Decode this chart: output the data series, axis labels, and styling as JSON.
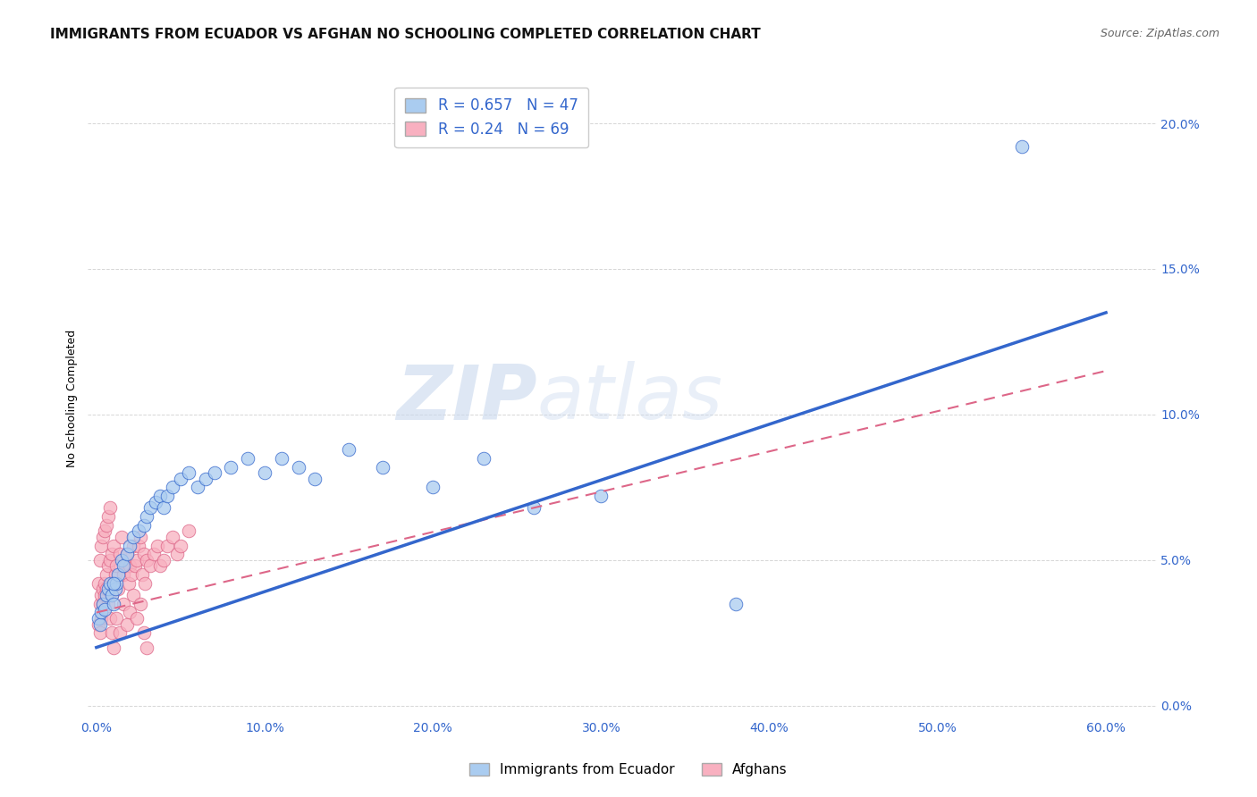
{
  "title": "IMMIGRANTS FROM ECUADOR VS AFGHAN NO SCHOOLING COMPLETED CORRELATION CHART",
  "source": "Source: ZipAtlas.com",
  "xlabel_ticks": [
    "0.0%",
    "10.0%",
    "20.0%",
    "30.0%",
    "40.0%",
    "50.0%",
    "60.0%"
  ],
  "xlabel_vals": [
    0.0,
    0.1,
    0.2,
    0.3,
    0.4,
    0.5,
    0.6
  ],
  "ylabel": "No Schooling Completed",
  "ylabel_ticks": [
    "0.0%",
    "5.0%",
    "10.0%",
    "15.0%",
    "20.0%"
  ],
  "ylabel_vals": [
    0.0,
    0.05,
    0.1,
    0.15,
    0.2
  ],
  "xlim": [
    -0.005,
    0.63
  ],
  "ylim": [
    -0.004,
    0.215
  ],
  "legend_label1": "Immigrants from Ecuador",
  "legend_label2": "Afghans",
  "R1": 0.657,
  "N1": 47,
  "R2": 0.24,
  "N2": 69,
  "color_blue": "#aaccf0",
  "color_pink": "#f8b0c0",
  "color_blue_line": "#3366cc",
  "color_pink_line": "#dd6688",
  "watermark_zip": "ZIP",
  "watermark_atlas": "atlas",
  "title_fontsize": 11,
  "source_fontsize": 9,
  "ecuador_x": [
    0.001,
    0.002,
    0.003,
    0.004,
    0.005,
    0.006,
    0.007,
    0.008,
    0.009,
    0.01,
    0.011,
    0.012,
    0.013,
    0.015,
    0.016,
    0.018,
    0.02,
    0.022,
    0.025,
    0.028,
    0.03,
    0.032,
    0.035,
    0.038,
    0.04,
    0.042,
    0.045,
    0.05,
    0.055,
    0.06,
    0.065,
    0.07,
    0.08,
    0.09,
    0.1,
    0.11,
    0.12,
    0.13,
    0.15,
    0.17,
    0.2,
    0.23,
    0.26,
    0.3,
    0.38,
    0.01,
    0.55
  ],
  "ecuador_y": [
    0.03,
    0.028,
    0.032,
    0.035,
    0.033,
    0.038,
    0.04,
    0.042,
    0.038,
    0.035,
    0.04,
    0.042,
    0.045,
    0.05,
    0.048,
    0.052,
    0.055,
    0.058,
    0.06,
    0.062,
    0.065,
    0.068,
    0.07,
    0.072,
    0.068,
    0.072,
    0.075,
    0.078,
    0.08,
    0.075,
    0.078,
    0.08,
    0.082,
    0.085,
    0.08,
    0.085,
    0.082,
    0.078,
    0.088,
    0.082,
    0.075,
    0.085,
    0.068,
    0.072,
    0.035,
    0.042,
    0.192
  ],
  "afghan_x": [
    0.001,
    0.001,
    0.002,
    0.002,
    0.003,
    0.003,
    0.004,
    0.004,
    0.005,
    0.005,
    0.006,
    0.006,
    0.007,
    0.007,
    0.008,
    0.008,
    0.009,
    0.009,
    0.01,
    0.01,
    0.011,
    0.012,
    0.013,
    0.014,
    0.015,
    0.016,
    0.017,
    0.018,
    0.019,
    0.02,
    0.021,
    0.022,
    0.023,
    0.024,
    0.025,
    0.026,
    0.027,
    0.028,
    0.029,
    0.03,
    0.032,
    0.034,
    0.036,
    0.038,
    0.04,
    0.042,
    0.045,
    0.048,
    0.05,
    0.055,
    0.002,
    0.003,
    0.004,
    0.005,
    0.006,
    0.007,
    0.008,
    0.009,
    0.01,
    0.012,
    0.014,
    0.016,
    0.018,
    0.02,
    0.022,
    0.024,
    0.026,
    0.028,
    0.03
  ],
  "afghan_y": [
    0.028,
    0.042,
    0.035,
    0.05,
    0.038,
    0.055,
    0.04,
    0.058,
    0.042,
    0.06,
    0.045,
    0.062,
    0.048,
    0.065,
    0.05,
    0.068,
    0.038,
    0.052,
    0.042,
    0.055,
    0.045,
    0.048,
    0.04,
    0.052,
    0.058,
    0.045,
    0.048,
    0.052,
    0.042,
    0.048,
    0.045,
    0.055,
    0.048,
    0.05,
    0.055,
    0.058,
    0.045,
    0.052,
    0.042,
    0.05,
    0.048,
    0.052,
    0.055,
    0.048,
    0.05,
    0.055,
    0.058,
    0.052,
    0.055,
    0.06,
    0.025,
    0.03,
    0.035,
    0.038,
    0.04,
    0.035,
    0.03,
    0.025,
    0.02,
    0.03,
    0.025,
    0.035,
    0.028,
    0.032,
    0.038,
    0.03,
    0.035,
    0.025,
    0.02
  ],
  "blue_line_x": [
    0.0,
    0.6
  ],
  "blue_line_y": [
    0.02,
    0.135
  ],
  "pink_line_x": [
    0.0,
    0.6
  ],
  "pink_line_y": [
    0.032,
    0.115
  ]
}
